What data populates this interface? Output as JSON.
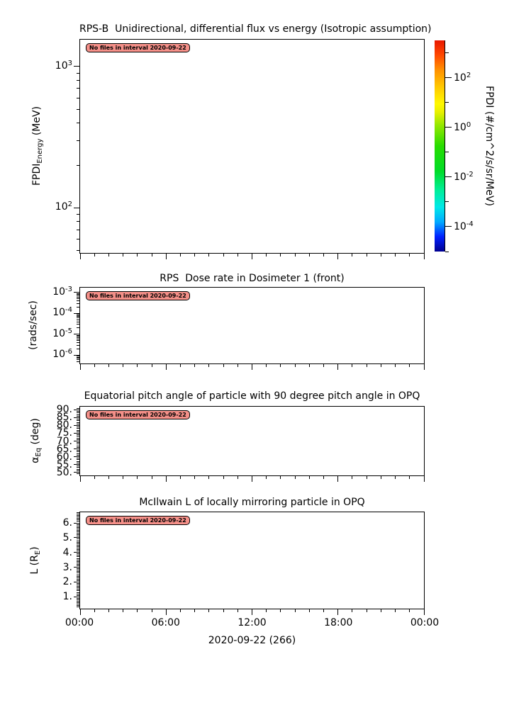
{
  "figure": {
    "background": "#ffffff",
    "date_label": "2020-09-22 (266)",
    "annotation": {
      "text": "No files in interval 2020-09-22",
      "fill": "#f59089",
      "border": "#000000"
    },
    "x_axis": {
      "major_labels": [
        "00:00",
        "06:00",
        "12:00",
        "18:00",
        "00:00"
      ],
      "major_hours": [
        0,
        6,
        12,
        18,
        24
      ],
      "minor_step_hours": 1,
      "total_hours": 24
    }
  },
  "chart_data": [
    {
      "type": "heatmap",
      "title": "RPS-B  Unidirectional, differential flux vs energy (Isotropic assumption)",
      "ylabel_text": "FPDI_Energy (MeV)",
      "ylabel_parts": [
        {
          "t": "FPDI"
        },
        {
          "t": "Energy",
          "sub": true
        },
        {
          "t": " (MeV)"
        }
      ],
      "yscale": "log",
      "ylim": [
        48,
        1550
      ],
      "ymajors": [
        {
          "v": 1000,
          "base": "10",
          "exp": "3"
        },
        {
          "v": 100,
          "base": "10",
          "exp": "2"
        }
      ],
      "series": [],
      "annotation": "No files in interval 2020-09-22",
      "colorbar": {
        "label": "FPDI (#/cm^2/s/sr/MeV)",
        "scale": "log",
        "lim_exp": [
          -5,
          3.5
        ],
        "tick_exps": [
          3,
          2,
          1,
          0,
          -1,
          -2,
          -3,
          -4,
          -5
        ],
        "labeled_exps": [
          2,
          0,
          -2,
          -4
        ],
        "colors": [
          {
            "c": "#000090",
            "p": 0
          },
          {
            "c": "#0020ff",
            "p": 7
          },
          {
            "c": "#00aaff",
            "p": 14
          },
          {
            "c": "#00e8e8",
            "p": 21
          },
          {
            "c": "#00ee99",
            "p": 29
          },
          {
            "c": "#00dc28",
            "p": 38
          },
          {
            "c": "#28dc00",
            "p": 50
          },
          {
            "c": "#96e800",
            "p": 60
          },
          {
            "c": "#e8f000",
            "p": 66
          },
          {
            "c": "#fff800",
            "p": 70
          },
          {
            "c": "#ffc800",
            "p": 78
          },
          {
            "c": "#ff9000",
            "p": 86
          },
          {
            "c": "#ff4800",
            "p": 93
          },
          {
            "c": "#e81800",
            "p": 100
          }
        ]
      }
    },
    {
      "type": "line",
      "title": "RPS  Dose rate in Dosimeter 1 (front)",
      "ylabel_text": "(rads/sec)",
      "ylabel_parts": [
        {
          "t": "(rads/sec)"
        }
      ],
      "yscale": "log",
      "ylim": [
        4e-07,
        0.0017
      ],
      "ymajors": [
        {
          "v": 0.001,
          "base": "10",
          "exp": "-3"
        },
        {
          "v": 0.0001,
          "base": "10",
          "exp": "-4"
        },
        {
          "v": 1e-05,
          "base": "10",
          "exp": "-5"
        },
        {
          "v": 1e-06,
          "base": "10",
          "exp": "-6"
        }
      ],
      "series": [],
      "annotation": "No files in interval 2020-09-22"
    },
    {
      "type": "line",
      "title": "Equatorial pitch angle of particle with 90 degree pitch angle in OPQ",
      "ylabel_text": "α_Eq (deg)",
      "ylabel_parts": [
        {
          "t": "α"
        },
        {
          "t": "Eq",
          "sub": true
        },
        {
          "t": " (deg)"
        }
      ],
      "yscale": "linear",
      "ylim": [
        48,
        92
      ],
      "yminor_step": 1,
      "ymajors": [
        {
          "v": 90,
          "text": "90."
        },
        {
          "v": 85,
          "text": "85."
        },
        {
          "v": 80,
          "text": "80."
        },
        {
          "v": 75,
          "text": "75."
        },
        {
          "v": 70,
          "text": "70."
        },
        {
          "v": 65,
          "text": "65."
        },
        {
          "v": 60,
          "text": "60."
        },
        {
          "v": 55,
          "text": "55."
        },
        {
          "v": 50,
          "text": "50."
        }
      ],
      "series": [],
      "annotation": "No files in interval 2020-09-22"
    },
    {
      "type": "line",
      "title": "McIlwain L of locally mirroring particle in OPQ",
      "ylabel_text": "L (R_E)",
      "ylabel_parts": [
        {
          "t": "L (R"
        },
        {
          "t": "E",
          "sub": true
        },
        {
          "t": ")"
        }
      ],
      "yscale": "linear",
      "ylim": [
        0.2,
        6.72
      ],
      "yminor_step": 0.1,
      "ymajors": [
        {
          "v": 6,
          "text": "6."
        },
        {
          "v": 5,
          "text": "5."
        },
        {
          "v": 4,
          "text": "4."
        },
        {
          "v": 3,
          "text": "3."
        },
        {
          "v": 2,
          "text": "2."
        },
        {
          "v": 1,
          "text": "1."
        }
      ],
      "series": [],
      "annotation": "No files in interval 2020-09-22"
    }
  ]
}
